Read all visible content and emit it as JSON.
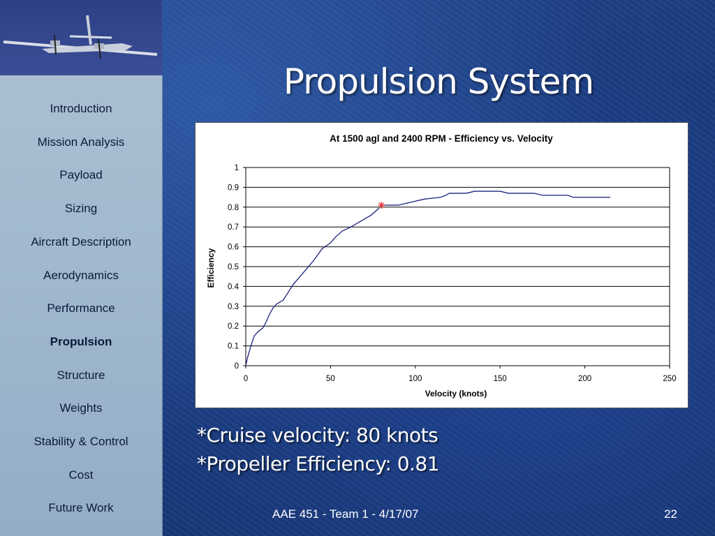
{
  "slide": {
    "title": "Propulsion System",
    "bullets": [
      "*Cruise velocity: 80 knots",
      "*Propeller Efficiency: 0.81"
    ],
    "footer": "AAE 451 - Team 1 - 4/17/07",
    "page_number": "22"
  },
  "sidebar": {
    "items": [
      {
        "label": "Introduction",
        "active": false
      },
      {
        "label": "Mission Analysis",
        "active": false
      },
      {
        "label": "Payload",
        "active": false
      },
      {
        "label": "Sizing",
        "active": false
      },
      {
        "label": "Aircraft Description",
        "active": false
      },
      {
        "label": "Aerodynamics",
        "active": false
      },
      {
        "label": "Performance",
        "active": false
      },
      {
        "label": "Propulsion",
        "active": true
      },
      {
        "label": "Structure",
        "active": false
      },
      {
        "label": "Weights",
        "active": false
      },
      {
        "label": "Stability & Control",
        "active": false
      },
      {
        "label": "Cost",
        "active": false
      },
      {
        "label": "Future Work",
        "active": false
      }
    ]
  },
  "logo": {
    "icon": "twin-engine-airplane-icon"
  },
  "chart_data": {
    "type": "line",
    "title": "At 1500 agl and 2400 RPM - Efficiency vs. Velocity",
    "xlabel": "Velocity (knots)",
    "ylabel": "Efficiency",
    "xlim": [
      0,
      250
    ],
    "ylim": [
      0,
      1
    ],
    "x_ticks": [
      0,
      50,
      100,
      150,
      200,
      250
    ],
    "y_ticks": [
      0,
      0.1,
      0.2,
      0.3,
      0.4,
      0.5,
      0.6,
      0.7,
      0.8,
      0.9,
      1
    ],
    "y_tick_labels": [
      "0",
      "0.1",
      "0.2",
      "0.3",
      "0.4",
      "0.5",
      "0.6",
      "0.7",
      "0.8",
      "0.9",
      "1"
    ],
    "grid": "horizontal",
    "series": [
      {
        "color": "#1a237e",
        "x": [
          0,
          1,
          3,
          5,
          7,
          10,
          12,
          14,
          16,
          18,
          20,
          22,
          25,
          28,
          32,
          36,
          40,
          45,
          50,
          53,
          57,
          62,
          68,
          74,
          78,
          80,
          82,
          85,
          90,
          95,
          100,
          105,
          110,
          115,
          118,
          120,
          125,
          130,
          135,
          140,
          145,
          150,
          155,
          160,
          165,
          170,
          175,
          180,
          185,
          190,
          193,
          200,
          205,
          210,
          215
        ],
        "y": [
          0,
          0.04,
          0.1,
          0.15,
          0.17,
          0.19,
          0.22,
          0.26,
          0.29,
          0.31,
          0.32,
          0.33,
          0.37,
          0.41,
          0.45,
          0.49,
          0.53,
          0.59,
          0.62,
          0.65,
          0.68,
          0.7,
          0.73,
          0.76,
          0.79,
          0.81,
          0.81,
          0.81,
          0.81,
          0.82,
          0.83,
          0.84,
          0.845,
          0.85,
          0.86,
          0.87,
          0.87,
          0.87,
          0.88,
          0.88,
          0.88,
          0.88,
          0.87,
          0.87,
          0.87,
          0.87,
          0.86,
          0.86,
          0.86,
          0.86,
          0.85,
          0.85,
          0.85,
          0.85,
          0.85
        ]
      }
    ],
    "highlight_point": {
      "x": 80,
      "y": 0.81,
      "marker": "asterisk",
      "color": "#e53935"
    }
  }
}
